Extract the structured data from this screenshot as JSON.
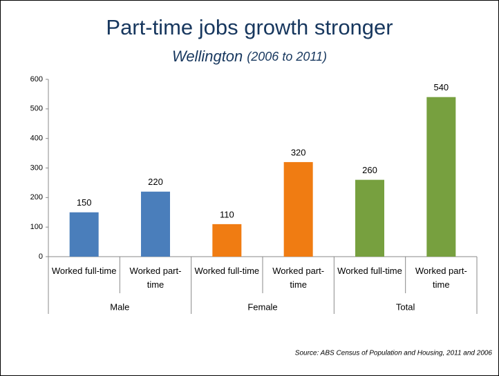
{
  "chart_data": {
    "type": "bar",
    "title": "Part-time jobs growth stronger",
    "subtitle": "Wellington",
    "subtitle_note": "(2006 to 2011)",
    "source": "Source:  ABS Census of Population and Housing, 2011 and 2006",
    "groups": [
      {
        "name": "Male",
        "color": "#4a7ebb",
        "categories": [
          "Worked full-time",
          "Worked part-time"
        ],
        "values": [
          150,
          220
        ]
      },
      {
        "name": "Female",
        "color": "#f07c12",
        "categories": [
          "Worked full-time",
          "Worked part-time"
        ],
        "values": [
          110,
          320
        ]
      },
      {
        "name": "Total",
        "color": "#77a03f",
        "categories": [
          "Worked full-time",
          "Worked part-time"
        ],
        "values": [
          260,
          540
        ]
      }
    ],
    "ylim": [
      0,
      600
    ],
    "yticks": [
      0,
      100,
      200,
      300,
      400,
      500,
      600
    ],
    "grid": false
  }
}
